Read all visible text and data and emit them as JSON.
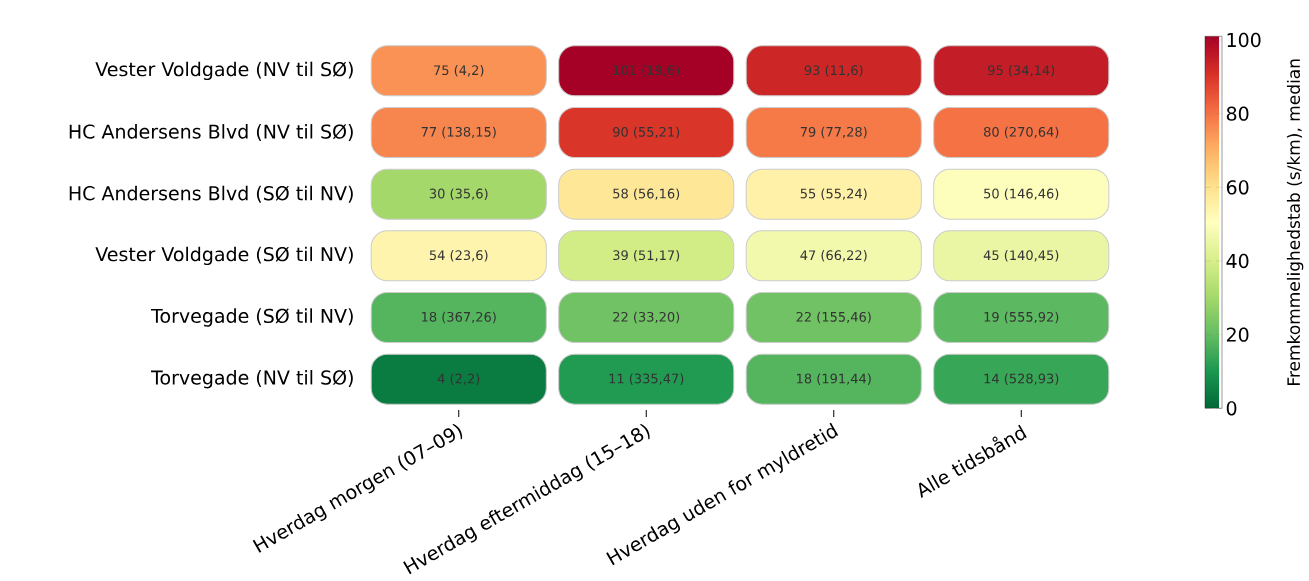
{
  "chart_data": {
    "type": "heatmap",
    "categories": [
      "Hverdag morgen (07–09)",
      "Hverdag eftermiddag (15–18)",
      "Hverdag uden for myldretid",
      "Alle tidsbånd"
    ],
    "y_categories": [
      "Vester Voldgade (NV til SØ)",
      "HC Andersens Blvd (NV til SØ)",
      "HC Andersens Blvd (SØ til NV)",
      "Vester Voldgade (SØ til NV)",
      "Torvegade (SØ til NV)",
      "Torvegade (NV til SØ)"
    ],
    "cells": [
      [
        75,
        101,
        93,
        95
      ],
      [
        77,
        90,
        79,
        80
      ],
      [
        30,
        58,
        55,
        50
      ],
      [
        54,
        39,
        47,
        45
      ],
      [
        18,
        22,
        22,
        19
      ],
      [
        4,
        11,
        18,
        14
      ]
    ],
    "cell_labels": [
      [
        "75 (4,2)",
        "101 (19,6)",
        "93 (11,6)",
        "95 (34,14)"
      ],
      [
        "77 (138,15)",
        "90 (55,21)",
        "79 (77,28)",
        "80 (270,64)"
      ],
      [
        "30 (35,6)",
        "58 (56,16)",
        "55 (55,24)",
        "50 (146,46)"
      ],
      [
        "54 (23,6)",
        "39 (51,17)",
        "47 (66,22)",
        "45 (140,45)"
      ],
      [
        "18 (367,26)",
        "22 (33,20)",
        "22 (155,46)",
        "19 (555,92)"
      ],
      [
        "4 (2,2)",
        "11 (335,47)",
        "18 (191,44)",
        "14 (528,93)"
      ]
    ],
    "clim": [
      0,
      101
    ],
    "cticks": [
      0,
      20,
      40,
      60,
      80,
      100
    ],
    "clabel": "Fremkommelighedstab (s/km), median"
  }
}
